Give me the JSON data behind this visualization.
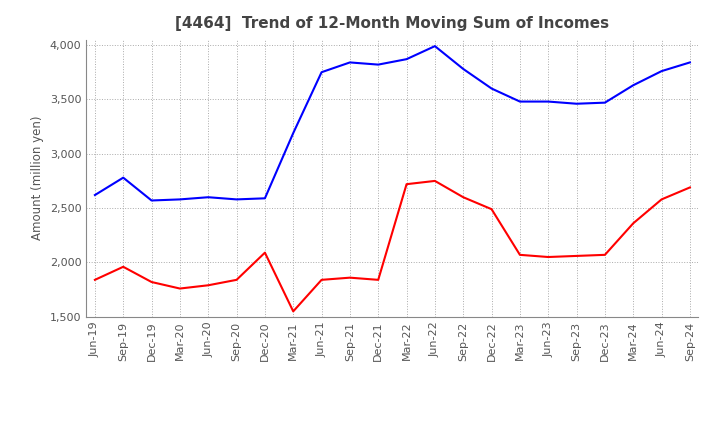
{
  "title": "[4464]  Trend of 12-Month Moving Sum of Incomes",
  "ylabel": "Amount (million yen)",
  "ylim": [
    1500,
    4050
  ],
  "yticks": [
    1500,
    2000,
    2500,
    3000,
    3500,
    4000
  ],
  "background_color": "#ffffff",
  "grid_color": "#aaaaaa",
  "ordinary_income_color": "#0000ff",
  "net_income_color": "#ff0000",
  "x_labels": [
    "Jun-19",
    "Sep-19",
    "Dec-19",
    "Mar-20",
    "Jun-20",
    "Sep-20",
    "Dec-20",
    "Mar-21",
    "Jun-21",
    "Sep-21",
    "Dec-21",
    "Mar-22",
    "Jun-22",
    "Sep-22",
    "Dec-22",
    "Mar-23",
    "Jun-23",
    "Sep-23",
    "Dec-23",
    "Mar-24",
    "Jun-24",
    "Sep-24"
  ],
  "ordinary_income": [
    2620,
    2780,
    2570,
    2580,
    2600,
    2580,
    2590,
    3190,
    3750,
    3840,
    3820,
    3870,
    3990,
    3780,
    3600,
    3480,
    3480,
    3460,
    3470,
    3630,
    3760,
    3840
  ],
  "net_income": [
    1840,
    1960,
    1820,
    1760,
    1790,
    1840,
    2090,
    1550,
    1840,
    1860,
    1840,
    2720,
    2750,
    2600,
    2490,
    2070,
    2050,
    2060,
    2070,
    2360,
    2580,
    2690
  ],
  "title_fontsize": 11,
  "ylabel_fontsize": 8.5,
  "tick_fontsize": 8,
  "legend_fontsize": 9
}
